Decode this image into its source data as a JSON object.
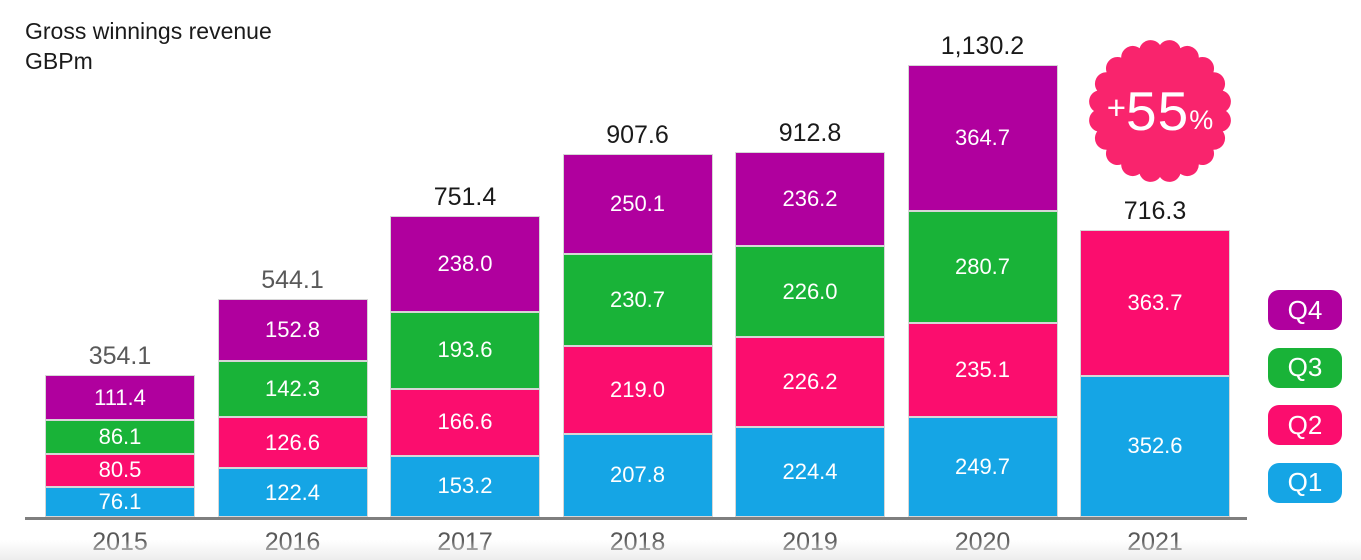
{
  "title": {
    "line1": "Gross winnings revenue",
    "line2": "GBPm"
  },
  "badge": {
    "plus": "+",
    "value": "55",
    "percent": "%",
    "color": "#f9246d"
  },
  "legend": [
    {
      "label": "Q4",
      "color": "#b0009e"
    },
    {
      "label": "Q3",
      "color": "#19b338"
    },
    {
      "label": "Q2",
      "color": "#fb0d6e"
    },
    {
      "label": "Q1",
      "color": "#15a5e5"
    }
  ],
  "chart_data": {
    "type": "bar",
    "stacked": true,
    "title": "Gross winnings revenue",
    "unit": "GBPm",
    "grid": false,
    "legend_position": "right",
    "categories": [
      "2015",
      "2016",
      "2017",
      "2018",
      "2019",
      "2020",
      "2021"
    ],
    "series": [
      {
        "name": "Q1",
        "color": "#15a5e5",
        "values": [
          76.1,
          122.4,
          153.2,
          207.8,
          224.4,
          249.7,
          352.6
        ]
      },
      {
        "name": "Q2",
        "color": "#fb0d6e",
        "values": [
          80.5,
          126.6,
          166.6,
          219.0,
          226.2,
          235.1,
          363.7
        ]
      },
      {
        "name": "Q3",
        "color": "#19b338",
        "values": [
          86.1,
          142.3,
          193.6,
          230.7,
          226.0,
          280.7,
          null
        ]
      },
      {
        "name": "Q4",
        "color": "#b0009e",
        "values": [
          111.4,
          152.8,
          238.0,
          250.1,
          236.2,
          364.7,
          null
        ]
      }
    ],
    "totals": [
      "354.1",
      "544.1",
      "751.4",
      "907.6",
      "912.8",
      "1,130.2",
      "716.3"
    ],
    "total_label_colors": [
      "#595959",
      "#595959",
      "#1a1a1a",
      "#1a1a1a",
      "#1a1a1a",
      "#1a1a1a",
      "#1a1a1a"
    ],
    "annotation": "+55%"
  }
}
